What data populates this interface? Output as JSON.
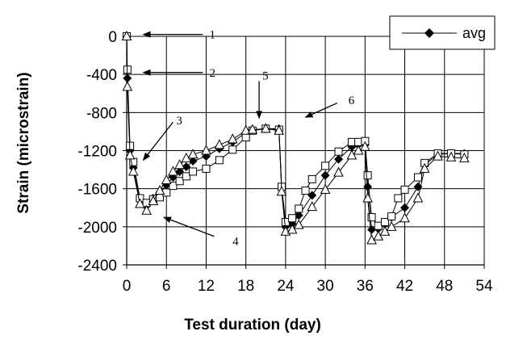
{
  "chart_data": {
    "type": "line",
    "xlabel": "Test duration (day)",
    "ylabel": "Strain (microstrain)",
    "xlim": [
      0,
      54
    ],
    "ylim": [
      -2400,
      0
    ],
    "xticks": [
      0,
      6,
      12,
      18,
      24,
      30,
      36,
      42,
      48,
      54
    ],
    "yticks": [
      0,
      -400,
      -800,
      -1200,
      -1600,
      -2000,
      -2400
    ],
    "grid": true,
    "legend": {
      "position": "top-right",
      "entries": [
        "avg"
      ]
    },
    "series": [
      {
        "name": "avg",
        "marker": "diamond",
        "points": [
          [
            0,
            0
          ],
          [
            0.1,
            -440
          ],
          [
            0.5,
            -1200
          ],
          [
            1,
            -1380
          ],
          [
            2,
            -1720
          ],
          [
            3,
            -1770
          ],
          [
            4,
            -1700
          ],
          [
            5,
            -1640
          ],
          [
            6,
            -1560
          ],
          [
            7,
            -1480
          ],
          [
            8,
            -1420
          ],
          [
            9,
            -1370
          ],
          [
            10,
            -1310
          ],
          [
            12,
            -1260
          ],
          [
            14,
            -1180
          ],
          [
            16,
            -1110
          ],
          [
            18,
            -1010
          ],
          [
            19,
            -980
          ],
          [
            21,
            -970
          ],
          [
            23,
            -970
          ],
          [
            23.4,
            -1600
          ],
          [
            24,
            -2000
          ],
          [
            25,
            -1970
          ],
          [
            26,
            -1880
          ],
          [
            28,
            -1670
          ],
          [
            30,
            -1460
          ],
          [
            32,
            -1290
          ],
          [
            34,
            -1160
          ],
          [
            35,
            -1140
          ],
          [
            36,
            -1140
          ],
          [
            36.4,
            -1580
          ],
          [
            37,
            -2030
          ],
          [
            38,
            -2020
          ],
          [
            39,
            -1970
          ],
          [
            40,
            -1900
          ],
          [
            42,
            -1800
          ],
          [
            44,
            -1580
          ],
          [
            45,
            -1350
          ],
          [
            47,
            -1240
          ],
          [
            49,
            -1230
          ],
          [
            51,
            -1230
          ]
        ]
      },
      {
        "marker": "square",
        "points": [
          [
            0,
            0
          ],
          [
            0.1,
            -350
          ],
          [
            0.5,
            -1150
          ],
          [
            1,
            -1320
          ],
          [
            2,
            -1700
          ],
          [
            3,
            -1750
          ],
          [
            4,
            -1710
          ],
          [
            5,
            -1690
          ],
          [
            6,
            -1640
          ],
          [
            7,
            -1570
          ],
          [
            8,
            -1520
          ],
          [
            9,
            -1470
          ],
          [
            10,
            -1420
          ],
          [
            12,
            -1390
          ],
          [
            14,
            -1300
          ],
          [
            16,
            -1190
          ],
          [
            18,
            -1060
          ],
          [
            19,
            -990
          ],
          [
            21,
            -970
          ],
          [
            23,
            -980
          ],
          [
            23.4,
            -1580
          ],
          [
            24,
            -1950
          ],
          [
            25,
            -1910
          ],
          [
            26,
            -1810
          ],
          [
            27,
            -1620
          ],
          [
            28,
            -1500
          ],
          [
            30,
            -1360
          ],
          [
            32,
            -1210
          ],
          [
            34,
            -1110
          ],
          [
            35,
            -1110
          ],
          [
            36,
            -1100
          ],
          [
            36.4,
            -1460
          ],
          [
            37,
            -1900
          ],
          [
            38,
            -1990
          ],
          [
            39,
            -1950
          ],
          [
            40,
            -1890
          ],
          [
            41,
            -1700
          ],
          [
            42,
            -1610
          ],
          [
            44,
            -1480
          ],
          [
            45,
            -1330
          ],
          [
            47,
            -1230
          ],
          [
            49,
            -1230
          ],
          [
            51,
            -1240
          ]
        ]
      },
      {
        "marker": "triangle",
        "points": [
          [
            0,
            0
          ],
          [
            0.1,
            -530
          ],
          [
            0.5,
            -1250
          ],
          [
            1,
            -1420
          ],
          [
            2,
            -1760
          ],
          [
            3,
            -1830
          ],
          [
            4,
            -1730
          ],
          [
            5,
            -1620
          ],
          [
            6,
            -1510
          ],
          [
            7,
            -1420
          ],
          [
            8,
            -1350
          ],
          [
            9,
            -1280
          ],
          [
            10,
            -1240
          ],
          [
            12,
            -1200
          ],
          [
            14,
            -1140
          ],
          [
            16,
            -1080
          ],
          [
            18,
            -990
          ],
          [
            19,
            -980
          ],
          [
            21,
            -970
          ],
          [
            23,
            -990
          ],
          [
            23.4,
            -1630
          ],
          [
            24,
            -2050
          ],
          [
            25,
            -2030
          ],
          [
            26,
            -1980
          ],
          [
            28,
            -1790
          ],
          [
            30,
            -1610
          ],
          [
            32,
            -1430
          ],
          [
            34,
            -1250
          ],
          [
            35,
            -1200
          ],
          [
            36,
            -1160
          ],
          [
            36.4,
            -1700
          ],
          [
            37,
            -2140
          ],
          [
            38,
            -2100
          ],
          [
            39,
            -2050
          ],
          [
            40,
            -2000
          ],
          [
            42,
            -1910
          ],
          [
            44,
            -1700
          ],
          [
            45,
            -1390
          ],
          [
            47,
            -1260
          ],
          [
            49,
            -1270
          ],
          [
            51,
            -1280
          ]
        ]
      }
    ],
    "annotations": [
      {
        "label": "1",
        "text_x": 12,
        "text_y": 20,
        "arrow_from": [
          11.5,
          20
        ],
        "arrow_to": [
          2.5,
          20
        ]
      },
      {
        "label": "2",
        "text_x": 12,
        "text_y": -380,
        "arrow_from": [
          11.5,
          -380
        ],
        "arrow_to": [
          2.5,
          -380
        ]
      },
      {
        "label": "3",
        "text_x": 7,
        "text_y": -880,
        "arrow_from": [
          7,
          -900
        ],
        "arrow_to": [
          2.5,
          -1300
        ]
      },
      {
        "label": "4",
        "text_x": 15.5,
        "text_y": -2150,
        "arrow_from": [
          13.2,
          -2100
        ],
        "arrow_to": [
          5.6,
          -1900
        ]
      },
      {
        "label": "5",
        "text_x": 20,
        "text_y": -410,
        "arrow_from": [
          20,
          -470
        ],
        "arrow_to": [
          20,
          -860
        ]
      },
      {
        "label": "6",
        "text_x": 33,
        "text_y": -670,
        "arrow_from": [
          31.8,
          -700
        ],
        "arrow_to": [
          27,
          -850
        ]
      }
    ]
  }
}
